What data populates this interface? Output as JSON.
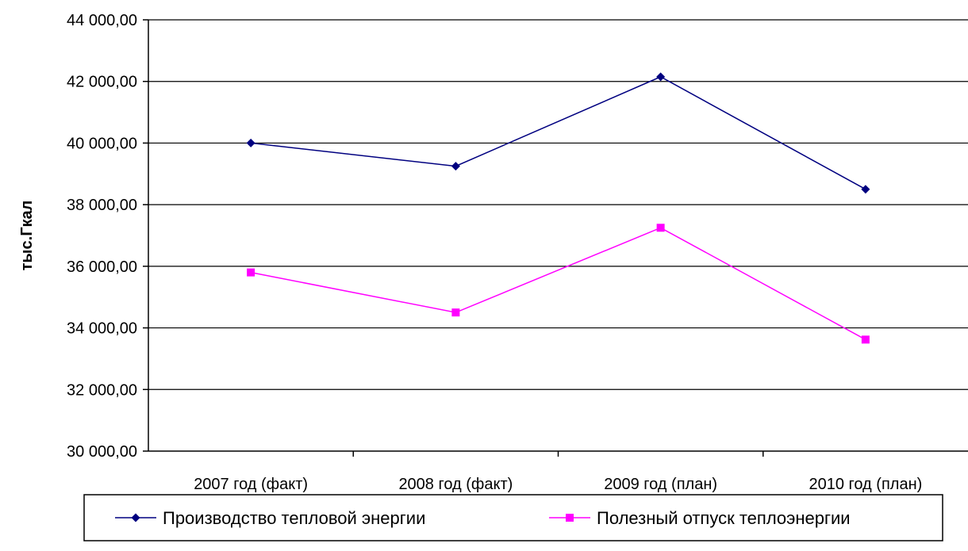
{
  "chart_data": {
    "type": "line",
    "categories": [
      "2007 год (факт)",
      "2008 год (факт)",
      "2009 год (план)",
      "2010 год (план)"
    ],
    "series": [
      {
        "name": "Производство тепловой энергии",
        "values": [
          40000,
          39250,
          42150,
          38500
        ],
        "color": "#000080",
        "marker": "diamond"
      },
      {
        "name": "Полезный отпуск теплоэнергии",
        "values": [
          35800,
          34500,
          37250,
          33620
        ],
        "color": "#ff00ff",
        "marker": "square"
      }
    ],
    "ylabel": "тыс.Гкал",
    "xlabel": "",
    "title": "",
    "ylim": [
      30000,
      44000
    ],
    "ytick_step": 2000,
    "ytick_labels": [
      "30 000,00",
      "32 000,00",
      "34 000,00",
      "36 000,00",
      "38 000,00",
      "40 000,00",
      "42 000,00",
      "44 000,00"
    ],
    "grid": true,
    "legend_position": "bottom"
  }
}
